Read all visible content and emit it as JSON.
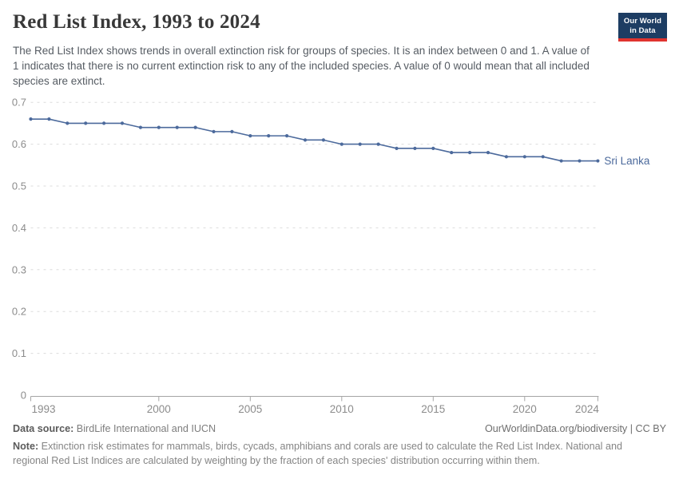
{
  "header": {
    "title": "Red List Index, 1993 to 2024",
    "subtitle": "The Red List Index shows trends in overall extinction risk for groups of species. It is an index between 0 and 1. A value of 1 indicates that there is no current extinction risk to any of the included species. A value of 0 would mean that all included species are extinct.",
    "logo": {
      "line1": "Our World",
      "line2": "in Data",
      "bg_color": "#1d3d63",
      "stripe_color": "#e0342f"
    }
  },
  "chart_data": {
    "type": "line",
    "title": "Red List Index, 1993 to 2024",
    "xlabel": "",
    "ylabel": "",
    "x": [
      1993,
      1994,
      1995,
      1996,
      1997,
      1998,
      1999,
      2000,
      2001,
      2002,
      2003,
      2004,
      2005,
      2006,
      2007,
      2008,
      2009,
      2010,
      2011,
      2012,
      2013,
      2014,
      2015,
      2016,
      2017,
      2018,
      2019,
      2020,
      2021,
      2022,
      2023,
      2024
    ],
    "series": [
      {
        "name": "Sri Lanka",
        "color": "#4c6a9c",
        "values": [
          0.66,
          0.66,
          0.65,
          0.65,
          0.65,
          0.65,
          0.64,
          0.64,
          0.64,
          0.64,
          0.63,
          0.63,
          0.62,
          0.62,
          0.62,
          0.61,
          0.61,
          0.6,
          0.6,
          0.6,
          0.59,
          0.59,
          0.59,
          0.58,
          0.58,
          0.58,
          0.57,
          0.57,
          0.57,
          0.56,
          0.56,
          0.56
        ]
      }
    ],
    "xticks": [
      1993,
      2000,
      2005,
      2010,
      2015,
      2020,
      2024
    ],
    "yticks": [
      0,
      0.1,
      0.2,
      0.3,
      0.4,
      0.5,
      0.6,
      0.7
    ],
    "xlim": [
      1993,
      2024
    ],
    "ylim": [
      0,
      0.7
    ],
    "grid": "horizontal-dashed",
    "legend_position": "end-of-line",
    "end_label": "Sri Lanka"
  },
  "footer": {
    "source_label": "Data source:",
    "source_text": " BirdLife International and IUCN",
    "attribution": "OurWorldinData.org/biodiversity | CC BY",
    "note_label": "Note:",
    "note_text": " Extinction risk estimates for mammals, birds, cycads, amphibians and corals are used to calculate the Red List Index. National and regional Red List Indices are calculated by weighting by the fraction of each species' distribution occurring within them."
  }
}
